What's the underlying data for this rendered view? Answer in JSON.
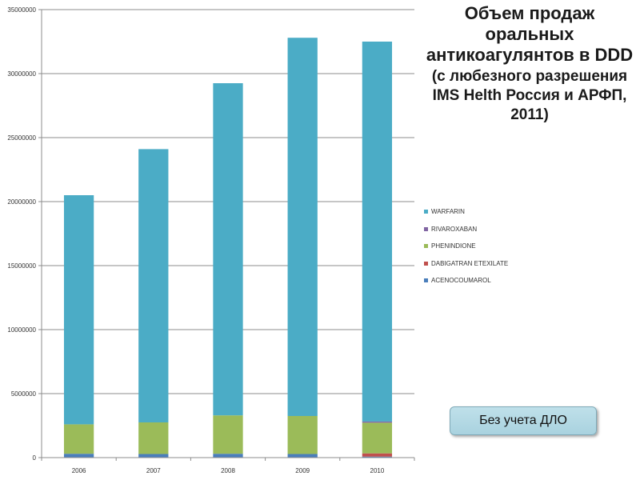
{
  "title": {
    "main": "Объем продаж оральных антикоагулянтов в DDD",
    "sub": "(с любезного разрешения IMS Helth Россия и АРФП, 2011)"
  },
  "note_button": {
    "label": "Без учета ДЛО"
  },
  "chart_data": {
    "type": "bar",
    "stacked": true,
    "categories": [
      "2006",
      "2007",
      "2008",
      "2009",
      "2010"
    ],
    "series": [
      {
        "name": "ACENOCOUMAROL",
        "color": "#4a7ebb",
        "values": [
          300000,
          280000,
          300000,
          280000,
          80000
        ]
      },
      {
        "name": "DABIGATRAN ETEXILATE",
        "color": "#c0504d",
        "values": [
          0,
          0,
          0,
          0,
          250000
        ]
      },
      {
        "name": "PHENINDIONE",
        "color": "#9bbb59",
        "values": [
          2300000,
          2470000,
          3000000,
          2970000,
          2400000
        ]
      },
      {
        "name": "RIVAROXABAN",
        "color": "#8064a2",
        "values": [
          0,
          0,
          0,
          0,
          90000
        ]
      },
      {
        "name": "WARFARIN",
        "color": "#4bacc6",
        "values": [
          17900000,
          21350000,
          25950000,
          29550000,
          29680000
        ]
      }
    ],
    "legend_order": [
      "WARFARIN",
      "RIVAROXABAN",
      "PHENINDIONE",
      "DABIGATRAN ETEXILATE",
      "ACENOCOUMAROL"
    ],
    "ylim": [
      0,
      35000000
    ],
    "yticks": [
      "0",
      "5000000",
      "10000000",
      "15000000",
      "20000000",
      "25000000",
      "30000000",
      "35000000"
    ],
    "grid": true,
    "legend_position": "right"
  }
}
